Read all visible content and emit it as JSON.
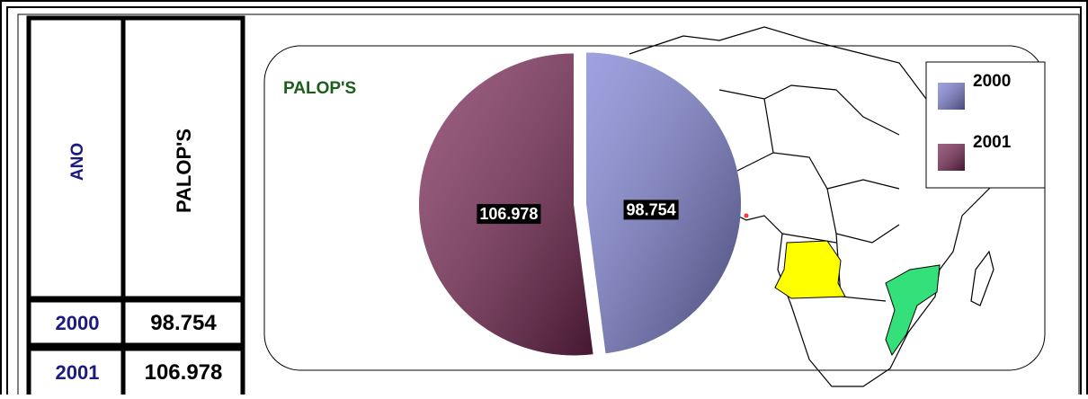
{
  "table": {
    "header": [
      "ANO",
      "PALOP'S"
    ],
    "rows": [
      [
        "2000",
        "98.754"
      ],
      [
        "2001",
        "106.978"
      ]
    ]
  },
  "chart_data": {
    "type": "pie",
    "title": "PALOP'S",
    "categories": [
      "2000",
      "2001"
    ],
    "values": [
      98.754,
      106.978
    ],
    "value_labels": [
      "98.754",
      "106.978"
    ],
    "colors": [
      "#8083d6",
      "#7d2a58"
    ],
    "legend": "right"
  }
}
